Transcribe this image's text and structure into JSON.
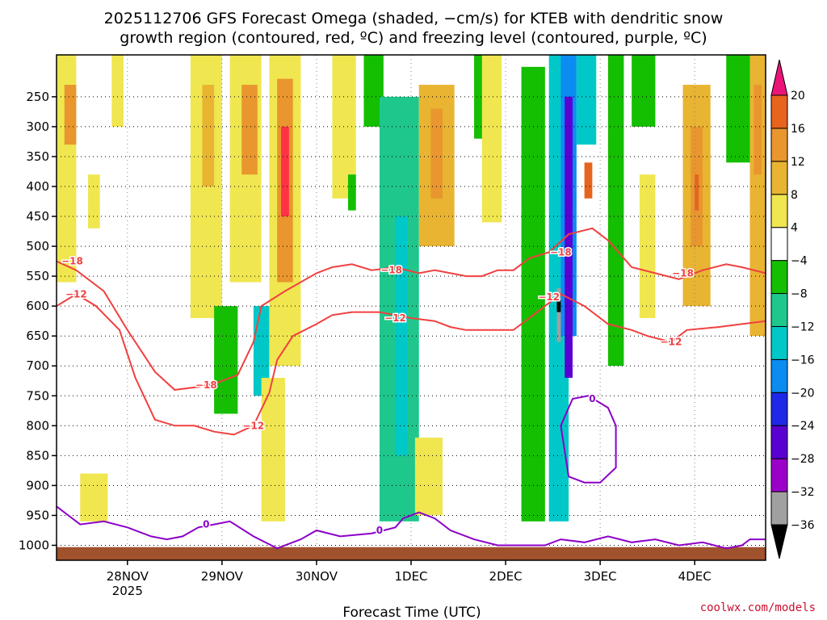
{
  "title_line1": "2025112706 GFS Forecast Omega (shaded, −cm/s) for KTEB with dendritic snow",
  "title_line2": "growth region (contoured, red, ºC) and freezing level (contoured, purple, ºC)",
  "credit": "coolwx.com/models",
  "chart_data": {
    "type": "heatmap",
    "xlabel": "Forecast Time (UTC)",
    "ylabel": "",
    "x_unit": "hours since 2025112706",
    "xlim": [
      0,
      180
    ],
    "ylim": [
      1025,
      180
    ],
    "x_ticks": [
      {
        "t": 18,
        "label": "28NOV",
        "sub": "2025"
      },
      {
        "t": 42,
        "label": "29NOV"
      },
      {
        "t": 66,
        "label": "30NOV"
      },
      {
        "t": 90,
        "label": "1DEC"
      },
      {
        "t": 114,
        "label": "2DEC"
      },
      {
        "t": 138,
        "label": "3DEC"
      },
      {
        "t": 162,
        "label": "4DEC"
      }
    ],
    "y_ticks": [
      250,
      300,
      350,
      400,
      450,
      500,
      550,
      600,
      650,
      700,
      750,
      800,
      850,
      900,
      950,
      1000
    ],
    "colorbar": {
      "levels": [
        -36,
        -32,
        -28,
        -24,
        -20,
        -16,
        -12,
        -8,
        -4,
        4,
        8,
        12,
        16,
        20
      ],
      "labels": [
        "20",
        "16",
        "12",
        "8",
        "4",
        "−4",
        "−8",
        "−12",
        "−16",
        "−20",
        "−24",
        "−28",
        "−32",
        "−36"
      ],
      "colors": [
        "#000000",
        "#a0a0a0",
        "#9b00c8",
        "#5a00d2",
        "#1e28e6",
        "#0a8cf0",
        "#00c8c8",
        "#1ec88c",
        "#14be00",
        "#ffffff",
        "#f0e650",
        "#e8b432",
        "#e8962d",
        "#e6641e",
        "#ff3246",
        "#eb1478"
      ]
    },
    "omega_cells": [
      {
        "t0": 0,
        "t1": 5,
        "p0": 180,
        "p1": 560,
        "v": 6
      },
      {
        "t0": 2,
        "t1": 5,
        "p0": 230,
        "p1": 330,
        "v": 13
      },
      {
        "t0": 8,
        "t1": 11,
        "p0": 380,
        "p1": 470,
        "v": 5
      },
      {
        "t0": 14,
        "t1": 17,
        "p0": 180,
        "p1": 300,
        "v": 5
      },
      {
        "t0": 6,
        "t1": 13,
        "p0": 880,
        "p1": 960,
        "v": 5
      },
      {
        "t0": 34,
        "t1": 42,
        "p0": 180,
        "p1": 620,
        "v": 6
      },
      {
        "t0": 37,
        "t1": 40,
        "p0": 230,
        "p1": 400,
        "v": 10
      },
      {
        "t0": 44,
        "t1": 52,
        "p0": 180,
        "p1": 560,
        "v": 6
      },
      {
        "t0": 47,
        "t1": 51,
        "p0": 230,
        "p1": 380,
        "v": 13
      },
      {
        "t0": 54,
        "t1": 62,
        "p0": 180,
        "p1": 700,
        "v": 7
      },
      {
        "t0": 56,
        "t1": 60,
        "p0": 220,
        "p1": 560,
        "v": 13
      },
      {
        "t0": 57,
        "t1": 59,
        "p0": 300,
        "p1": 450,
        "v": 22
      },
      {
        "t0": 50,
        "t1": 54,
        "p0": 600,
        "p1": 750,
        "v": -14
      },
      {
        "t0": 52,
        "t1": 58,
        "p0": 720,
        "p1": 960,
        "v": 6
      },
      {
        "t0": 40,
        "t1": 46,
        "p0": 600,
        "p1": 780,
        "v": -6
      },
      {
        "t0": 70,
        "t1": 76,
        "p0": 180,
        "p1": 420,
        "v": 5
      },
      {
        "t0": 74,
        "t1": 76,
        "p0": 380,
        "p1": 440,
        "v": -6
      },
      {
        "t0": 78,
        "t1": 83,
        "p0": 180,
        "p1": 300,
        "v": -6
      },
      {
        "t0": 82,
        "t1": 92,
        "p0": 250,
        "p1": 960,
        "v": -10
      },
      {
        "t0": 86,
        "t1": 89,
        "p0": 450,
        "p1": 850,
        "v": -14
      },
      {
        "t0": 92,
        "t1": 101,
        "p0": 230,
        "p1": 500,
        "v": 9
      },
      {
        "t0": 95,
        "t1": 98,
        "p0": 270,
        "p1": 420,
        "v": 13
      },
      {
        "t0": 91,
        "t1": 98,
        "p0": 820,
        "p1": 950,
        "v": 7
      },
      {
        "t0": 106,
        "t1": 110,
        "p0": 180,
        "p1": 320,
        "v": -6
      },
      {
        "t0": 108,
        "t1": 113,
        "p0": 180,
        "p1": 460,
        "v": 5
      },
      {
        "t0": 118,
        "t1": 124,
        "p0": 200,
        "p1": 960,
        "v": -6
      },
      {
        "t0": 125,
        "t1": 130,
        "p0": 180,
        "p1": 960,
        "v": -14
      },
      {
        "t0": 128,
        "t1": 132,
        "p0": 180,
        "p1": 650,
        "v": -20
      },
      {
        "t0": 129,
        "t1": 131,
        "p0": 250,
        "p1": 720,
        "v": -27
      },
      {
        "t0": 127,
        "t1": 128,
        "p0": 570,
        "p1": 660,
        "v": -34
      },
      {
        "t0": 127,
        "t1": 128,
        "p0": 590,
        "p1": 610,
        "v": -38
      },
      {
        "t0": 132,
        "t1": 137,
        "p0": 180,
        "p1": 330,
        "v": -14
      },
      {
        "t0": 134,
        "t1": 136,
        "p0": 360,
        "p1": 420,
        "v": 17
      },
      {
        "t0": 140,
        "t1": 144,
        "p0": 180,
        "p1": 700,
        "v": -6
      },
      {
        "t0": 146,
        "t1": 152,
        "p0": 180,
        "p1": 300,
        "v": -6
      },
      {
        "t0": 148,
        "t1": 152,
        "p0": 380,
        "p1": 620,
        "v": 5
      },
      {
        "t0": 159,
        "t1": 166,
        "p0": 230,
        "p1": 600,
        "v": 9
      },
      {
        "t0": 161,
        "t1": 164,
        "p0": 300,
        "p1": 500,
        "v": 14
      },
      {
        "t0": 162,
        "t1": 163,
        "p0": 380,
        "p1": 440,
        "v": 17
      },
      {
        "t0": 170,
        "t1": 176,
        "p0": 180,
        "p1": 360,
        "v": -6
      },
      {
        "t0": 176,
        "t1": 180,
        "p0": 180,
        "p1": 650,
        "v": 9
      },
      {
        "t0": 177,
        "t1": 179,
        "p0": 230,
        "p1": 380,
        "v": 13
      }
    ],
    "contours": [
      {
        "name": "dgz-top",
        "level": -18,
        "color": "#f04040",
        "points": [
          [
            0,
            525
          ],
          [
            5,
            540
          ],
          [
            12,
            575
          ],
          [
            18,
            640
          ],
          [
            25,
            710
          ],
          [
            30,
            740
          ],
          [
            36,
            735
          ],
          [
            40,
            730
          ],
          [
            46,
            715
          ],
          [
            50,
            660
          ],
          [
            52,
            600
          ],
          [
            58,
            575
          ],
          [
            66,
            545
          ],
          [
            70,
            535
          ],
          [
            75,
            530
          ],
          [
            80,
            540
          ],
          [
            86,
            535
          ],
          [
            92,
            545
          ],
          [
            96,
            540
          ],
          [
            100,
            545
          ],
          [
            104,
            550
          ],
          [
            108,
            550
          ],
          [
            112,
            540
          ],
          [
            116,
            540
          ],
          [
            120,
            520
          ],
          [
            125,
            510
          ],
          [
            130,
            480
          ],
          [
            136,
            470
          ],
          [
            140,
            490
          ],
          [
            146,
            535
          ],
          [
            152,
            545
          ],
          [
            158,
            555
          ],
          [
            164,
            540
          ],
          [
            170,
            530
          ],
          [
            174,
            535
          ],
          [
            180,
            545
          ]
        ],
        "labels": [
          [
            4,
            525
          ],
          [
            38,
            732
          ],
          [
            85,
            540
          ],
          [
            128,
            510
          ],
          [
            159,
            545
          ]
        ]
      },
      {
        "name": "dgz-bottom",
        "level": -12,
        "color": "#f04040",
        "points": [
          [
            0,
            600
          ],
          [
            5,
            580
          ],
          [
            10,
            600
          ],
          [
            16,
            640
          ],
          [
            20,
            720
          ],
          [
            25,
            790
          ],
          [
            30,
            800
          ],
          [
            35,
            800
          ],
          [
            40,
            810
          ],
          [
            45,
            815
          ],
          [
            50,
            800
          ],
          [
            54,
            745
          ],
          [
            56,
            690
          ],
          [
            60,
            650
          ],
          [
            66,
            630
          ],
          [
            70,
            615
          ],
          [
            75,
            610
          ],
          [
            82,
            610
          ],
          [
            90,
            620
          ],
          [
            96,
            625
          ],
          [
            100,
            635
          ],
          [
            104,
            640
          ],
          [
            110,
            640
          ],
          [
            116,
            640
          ],
          [
            120,
            620
          ],
          [
            124,
            600
          ],
          [
            128,
            580
          ],
          [
            134,
            600
          ],
          [
            140,
            630
          ],
          [
            146,
            640
          ],
          [
            150,
            650
          ],
          [
            156,
            660
          ],
          [
            160,
            640
          ],
          [
            168,
            635
          ],
          [
            174,
            630
          ],
          [
            180,
            625
          ]
        ],
        "labels": [
          [
            5,
            580
          ],
          [
            50,
            800
          ],
          [
            86,
            620
          ],
          [
            125,
            585
          ],
          [
            156,
            660
          ]
        ]
      },
      {
        "name": "freezing-0",
        "level": 0,
        "color": "#8c00c8",
        "points": [
          [
            0,
            935
          ],
          [
            6,
            965
          ],
          [
            12,
            960
          ],
          [
            18,
            970
          ],
          [
            24,
            985
          ],
          [
            28,
            990
          ],
          [
            32,
            985
          ],
          [
            36,
            970
          ],
          [
            40,
            965
          ],
          [
            44,
            960
          ],
          [
            50,
            985
          ],
          [
            56,
            1005
          ],
          [
            62,
            990
          ],
          [
            66,
            975
          ],
          [
            72,
            985
          ],
          [
            80,
            980
          ],
          [
            86,
            970
          ],
          [
            88,
            955
          ],
          [
            92,
            945
          ],
          [
            96,
            955
          ],
          [
            100,
            975
          ],
          [
            106,
            990
          ],
          [
            112,
            1000
          ],
          [
            118,
            1000
          ],
          [
            124,
            1000
          ],
          [
            128,
            990
          ],
          [
            134,
            995
          ],
          [
            140,
            985
          ],
          [
            146,
            995
          ],
          [
            152,
            990
          ],
          [
            158,
            1000
          ],
          [
            164,
            995
          ],
          [
            170,
            1005
          ],
          [
            174,
            1000
          ],
          [
            176,
            990
          ],
          [
            180,
            990
          ]
        ],
        "labels": [
          [
            38,
            965
          ],
          [
            82,
            975
          ]
        ]
      },
      {
        "name": "freezing-0-loop",
        "level": 0,
        "color": "#8c00c8",
        "points": [
          [
            130,
            885
          ],
          [
            128,
            800
          ],
          [
            131,
            755
          ],
          [
            135,
            750
          ],
          [
            140,
            770
          ],
          [
            142,
            800
          ],
          [
            142,
            870
          ],
          [
            138,
            895
          ],
          [
            134,
            895
          ],
          [
            130,
            885
          ]
        ],
        "labels": [
          [
            136,
            755
          ]
        ]
      }
    ]
  }
}
